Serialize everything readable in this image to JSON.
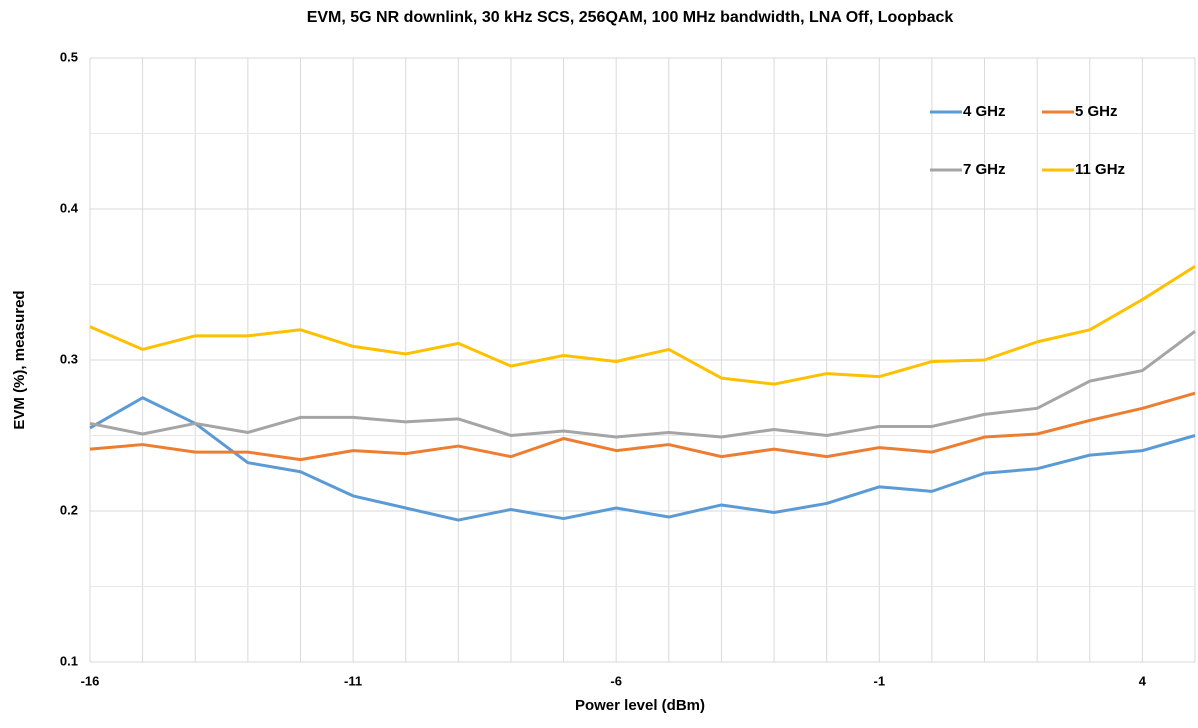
{
  "chart_data": {
    "type": "line",
    "title": "EVM, 5G NR downlink, 30 kHz SCS, 256QAM, 100 MHz bandwidth, LNA Off, Loopback",
    "xlabel": "Power level (dBm)",
    "ylabel": "EVM (%),  measured",
    "x": [
      -16,
      -15,
      -14,
      -13,
      -12,
      -11,
      -10,
      -9,
      -8,
      -7,
      -6,
      -5,
      -4,
      -3,
      -2,
      -1,
      0,
      1,
      2,
      3,
      4,
      5
    ],
    "series": [
      {
        "name": "4 GHz",
        "color": "#5b9bd5",
        "values": [
          0.255,
          0.275,
          0.258,
          0.232,
          0.226,
          0.21,
          0.202,
          0.194,
          0.201,
          0.195,
          0.202,
          0.196,
          0.204,
          0.199,
          0.205,
          0.216,
          0.213,
          0.225,
          0.228,
          0.237,
          0.24,
          0.25
        ]
      },
      {
        "name": "5 GHz",
        "color": "#ed7d31",
        "values": [
          0.241,
          0.244,
          0.239,
          0.239,
          0.234,
          0.24,
          0.238,
          0.243,
          0.236,
          0.248,
          0.24,
          0.244,
          0.236,
          0.241,
          0.236,
          0.242,
          0.239,
          0.249,
          0.251,
          0.26,
          0.268,
          0.278
        ]
      },
      {
        "name": "7 GHz",
        "color": "#a5a5a5",
        "values": [
          0.258,
          0.251,
          0.258,
          0.252,
          0.262,
          0.262,
          0.259,
          0.261,
          0.25,
          0.253,
          0.249,
          0.252,
          0.249,
          0.254,
          0.25,
          0.256,
          0.256,
          0.264,
          0.268,
          0.286,
          0.293,
          0.319
        ]
      },
      {
        "name": "11 GHz",
        "color": "#ffc000",
        "values": [
          0.322,
          0.307,
          0.316,
          0.316,
          0.32,
          0.309,
          0.304,
          0.311,
          0.296,
          0.303,
          0.299,
          0.307,
          0.288,
          0.284,
          0.291,
          0.289,
          0.299,
          0.3,
          0.312,
          0.32,
          0.34,
          0.362
        ]
      }
    ],
    "xlim": [
      -16,
      5
    ],
    "xticks": [
      -16,
      -11,
      -6,
      -1,
      4
    ],
    "ylim": [
      0.1,
      0.5
    ],
    "yticks": [
      0.1,
      0.2,
      0.3,
      0.4,
      0.5
    ],
    "y_minor_gridlines": [
      0.15,
      0.25,
      0.35,
      0.45
    ],
    "grid": true,
    "legend": "upper right"
  }
}
